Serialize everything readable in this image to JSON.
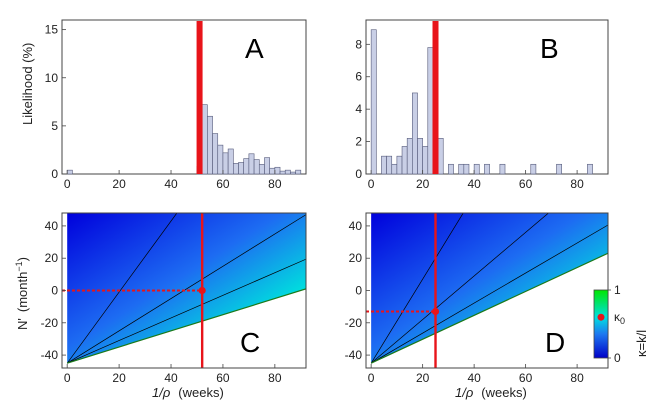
{
  "colors": {
    "hist_bar_fill": "#c9cfe6",
    "hist_bar_stroke": "#555a7a",
    "marker_red": "#e8141a",
    "contour_line": "#000000",
    "field_low": "#0000e6",
    "field_mid": "#00e6e6",
    "field_high": "#00e600"
  },
  "chart_data": [
    {
      "type": "bar",
      "panel": "A",
      "ylabel": "Likelihood (%)",
      "xlim": [
        -2,
        92
      ],
      "ylim": [
        0,
        16
      ],
      "xticks": [
        "0",
        "20",
        "40",
        "60",
        "80"
      ],
      "yticks": [
        "0",
        "5",
        "10",
        "15"
      ],
      "bin_width": 2,
      "bin_starts": [
        0,
        2,
        4,
        6,
        8,
        10,
        12,
        14,
        16,
        18,
        20,
        22,
        24,
        26,
        28,
        30,
        32,
        34,
        36,
        38,
        40,
        42,
        44,
        46,
        48,
        50,
        52,
        54,
        56,
        58,
        60,
        62,
        64,
        66,
        68,
        70,
        72,
        74,
        76,
        78,
        80,
        82,
        84,
        86,
        88
      ],
      "values": [
        0.4,
        0,
        0,
        0,
        0,
        0,
        0,
        0,
        0,
        0,
        0,
        0,
        0,
        0,
        0,
        0,
        0,
        0,
        0,
        0,
        0,
        0,
        0,
        0,
        0,
        0.8,
        7.2,
        6.0,
        4.2,
        3.0,
        2.2,
        2.6,
        1.1,
        1.2,
        1.6,
        2.1,
        1.5,
        1.0,
        1.7,
        0.6,
        0.7,
        0.3,
        0.4,
        0.2,
        0.4
      ],
      "marker_x": 51
    },
    {
      "type": "bar",
      "panel": "B",
      "xlim": [
        -2,
        92
      ],
      "ylim": [
        0,
        9.5
      ],
      "xticks": [
        "0",
        "20",
        "40",
        "60",
        "80"
      ],
      "yticks": [
        "0",
        "2",
        "4",
        "6",
        "8"
      ],
      "bin_width": 2,
      "bin_starts": [
        0,
        2,
        4,
        6,
        8,
        10,
        12,
        14,
        16,
        18,
        20,
        22,
        24,
        26,
        28,
        30,
        32,
        34,
        36,
        38,
        40,
        42,
        44,
        46,
        48,
        50,
        52,
        54,
        56,
        58,
        60,
        62,
        64,
        66,
        68,
        70,
        72,
        74,
        76,
        78,
        80,
        82,
        84,
        86,
        88
      ],
      "values": [
        8.9,
        0,
        1.1,
        1.1,
        0.6,
        1.1,
        1.7,
        2.2,
        5.0,
        2.2,
        1.7,
        7.8,
        0,
        2.2,
        0,
        0.6,
        0,
        0.6,
        0.6,
        0,
        0.6,
        0,
        0.6,
        0,
        0,
        0.6,
        0,
        0,
        0,
        0,
        0,
        0.6,
        0,
        0,
        0,
        0,
        0.6,
        0,
        0,
        0,
        0,
        0,
        0.6,
        0,
        0
      ],
      "marker_x": 25
    },
    {
      "type": "heatmap",
      "panel": "C",
      "xlabel_main": "1/ρ",
      "xlabel_unit": "(weeks)",
      "ylabel_main": "N'",
      "ylabel_unit_base": "(month",
      "ylabel_unit_exp": "−1",
      "ylabel_unit_close": ")",
      "xlim": [
        -2,
        92
      ],
      "ylim": [
        -48,
        48
      ],
      "xticks": [
        "0",
        "20",
        "40",
        "60",
        "80"
      ],
      "yticks": [
        "-40",
        "-20",
        "0",
        "20",
        "40"
      ],
      "origin": [
        0,
        -45
      ],
      "lower_boundary_slope": 0.5,
      "contour_slopes": [
        2.2,
        1.0,
        0.7
      ],
      "marker_x": 52,
      "point": [
        52,
        0
      ]
    },
    {
      "type": "heatmap",
      "panel": "D",
      "xlabel_main": "1/ρ",
      "xlabel_unit": "(weeks)",
      "xlim": [
        -2,
        92
      ],
      "ylim": [
        -48,
        48
      ],
      "xticks": [
        "0",
        "20",
        "40",
        "60",
        "80"
      ],
      "yticks": [
        "-40",
        "-20",
        "0",
        "20",
        "40"
      ],
      "origin": [
        0,
        -45
      ],
      "lower_boundary_slope": 0.74,
      "contour_slopes": [
        2.6,
        1.35,
        0.93
      ],
      "marker_x": 25,
      "point": [
        25,
        -13
      ]
    }
  ],
  "colorbar": {
    "ticks": [
      "0",
      "1"
    ],
    "marker_label_base": "κ",
    "marker_label_sub": "0",
    "marker_value": 0.6,
    "title": "κ=k/l"
  }
}
